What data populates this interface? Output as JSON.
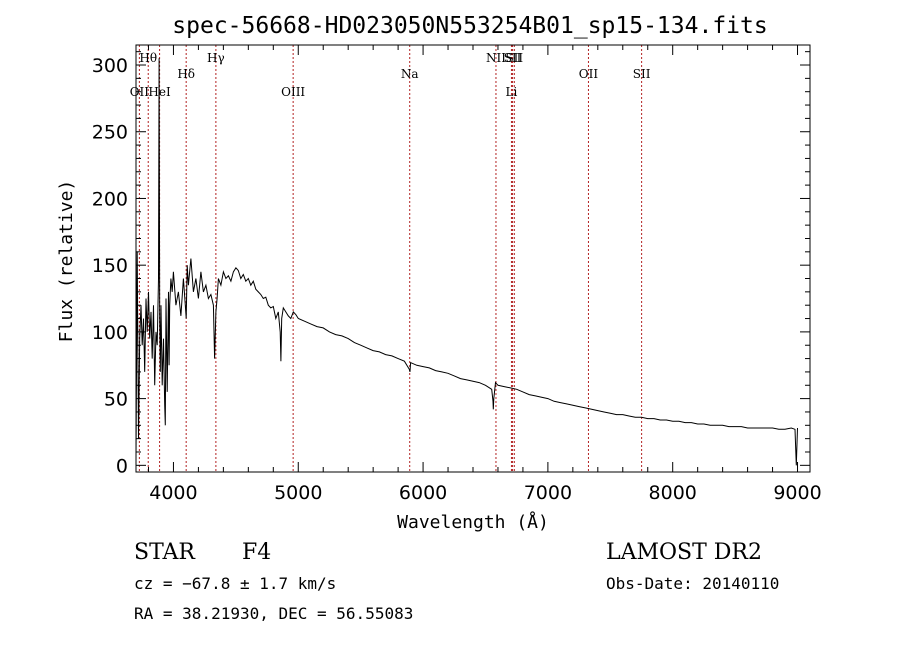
{
  "chart_data": {
    "type": "line",
    "title": "spec-56668-HD023050N553254B01_sp15-134.fits",
    "xlabel": "Wavelength (Å)",
    "ylabel": "Flux (relative)",
    "xlim": [
      3700,
      9100
    ],
    "ylim": [
      -5,
      315
    ],
    "x_ticks": [
      4000,
      5000,
      6000,
      7000,
      8000,
      9000
    ],
    "x_tick_labels": [
      "4000",
      "5000",
      "6000",
      "7000",
      "8000",
      "9000"
    ],
    "y_ticks": [
      0,
      50,
      100,
      150,
      200,
      250,
      300
    ],
    "y_tick_labels": [
      "0",
      "50",
      "100",
      "150",
      "200",
      "250",
      "300"
    ],
    "spectral_lines": [
      {
        "label": "OII",
        "wavelength": 3727,
        "row": 3
      },
      {
        "label": "Hθ",
        "wavelength": 3798,
        "row": 1
      },
      {
        "label": "HeI",
        "wavelength": 3889,
        "row": 3
      },
      {
        "label": "Hδ",
        "wavelength": 4102,
        "row": 2
      },
      {
        "label": "Hγ",
        "wavelength": 4340,
        "row": 1
      },
      {
        "label": "OIII",
        "wavelength": 4959,
        "row": 3
      },
      {
        "label": "Na",
        "wavelength": 5893,
        "row": 2
      },
      {
        "label": "NII",
        "wavelength": 6584,
        "row": 1
      },
      {
        "label": "SII",
        "wavelength": 6717,
        "row": 1
      },
      {
        "label": "Li",
        "wavelength": 6708,
        "row": 3
      },
      {
        "label": "SII",
        "wavelength": 6731,
        "row": 1
      },
      {
        "label": "OII",
        "wavelength": 7325,
        "row": 2
      },
      {
        "label": "SII",
        "wavelength": 7751,
        "row": 2
      }
    ],
    "series": [
      {
        "name": "flux",
        "x": [
          3700,
          3710,
          3720,
          3730,
          3740,
          3750,
          3760,
          3770,
          3780,
          3790,
          3800,
          3810,
          3820,
          3830,
          3840,
          3850,
          3860,
          3870,
          3880,
          3885,
          3890,
          3895,
          3900,
          3910,
          3920,
          3930,
          3935,
          3940,
          3950,
          3960,
          3965,
          3970,
          3980,
          3990,
          4000,
          4020,
          4040,
          4060,
          4080,
          4095,
          4102,
          4110,
          4120,
          4140,
          4160,
          4180,
          4200,
          4220,
          4240,
          4260,
          4280,
          4300,
          4320,
          4330,
          4340,
          4350,
          4360,
          4380,
          4400,
          4420,
          4440,
          4460,
          4480,
          4500,
          4520,
          4540,
          4560,
          4580,
          4600,
          4620,
          4640,
          4660,
          4680,
          4700,
          4720,
          4740,
          4760,
          4780,
          4800,
          4820,
          4840,
          4855,
          4861,
          4867,
          4880,
          4900,
          4920,
          4940,
          4960,
          4980,
          5000,
          5050,
          5100,
          5150,
          5200,
          5250,
          5300,
          5350,
          5400,
          5450,
          5500,
          5550,
          5600,
          5650,
          5700,
          5750,
          5800,
          5850,
          5890,
          5895,
          5900,
          5950,
          6000,
          6050,
          6100,
          6150,
          6200,
          6250,
          6300,
          6350,
          6400,
          6450,
          6500,
          6550,
          6560,
          6563,
          6567,
          6580,
          6600,
          6650,
          6700,
          6750,
          6800,
          6850,
          6900,
          6950,
          7000,
          7050,
          7100,
          7150,
          7200,
          7250,
          7300,
          7350,
          7400,
          7450,
          7500,
          7550,
          7600,
          7650,
          7700,
          7750,
          7800,
          7850,
          7900,
          7950,
          8000,
          8050,
          8100,
          8150,
          8200,
          8250,
          8300,
          8350,
          8400,
          8450,
          8500,
          8550,
          8600,
          8650,
          8700,
          8750,
          8800,
          8850,
          8900,
          8950,
          8980,
          8990,
          9000
        ],
        "y": [
          5,
          160,
          20,
          95,
          120,
          90,
          110,
          70,
          125,
          100,
          130,
          95,
          115,
          80,
          120,
          60,
          100,
          90,
          140,
          305,
          110,
          70,
          120,
          60,
          95,
          45,
          30,
          125,
          55,
          130,
          75,
          120,
          140,
          130,
          145,
          120,
          130,
          112,
          140,
          120,
          110,
          150,
          135,
          155,
          130,
          140,
          125,
          145,
          130,
          135,
          125,
          128,
          120,
          80,
          115,
          125,
          140,
          135,
          145,
          140,
          142,
          138,
          145,
          148,
          146,
          140,
          143,
          138,
          140,
          135,
          138,
          132,
          130,
          128,
          125,
          126,
          120,
          118,
          119,
          110,
          115,
          100,
          78,
          110,
          118,
          115,
          112,
          110,
          115,
          113,
          110,
          108,
          106,
          104,
          103,
          100,
          98,
          97,
          95,
          92,
          90,
          88,
          86,
          85,
          83,
          82,
          80,
          78,
          72,
          70,
          77,
          75,
          74,
          73,
          71,
          70,
          69,
          67,
          65,
          64,
          63,
          62,
          60,
          57,
          48,
          42,
          50,
          62,
          60,
          59,
          58,
          57,
          55,
          53,
          52,
          51,
          50,
          48,
          47,
          46,
          45,
          44,
          43,
          42,
          41,
          40,
          39,
          38,
          38,
          37,
          36,
          36,
          35,
          35,
          34,
          34,
          33,
          33,
          32,
          32,
          31,
          31,
          30,
          30,
          30,
          29,
          29,
          29,
          28,
          28,
          28,
          28,
          28,
          27,
          27,
          28,
          27,
          0,
          28
        ]
      }
    ]
  },
  "footer": {
    "object_type": "STAR",
    "subclass": "F4",
    "survey": "LAMOST DR2",
    "redshift": "cz = −67.8 ± 1.7 km/s",
    "obs_date": "Obs-Date: 20140110",
    "coords": "RA =  38.21930, DEC =  56.55083"
  }
}
